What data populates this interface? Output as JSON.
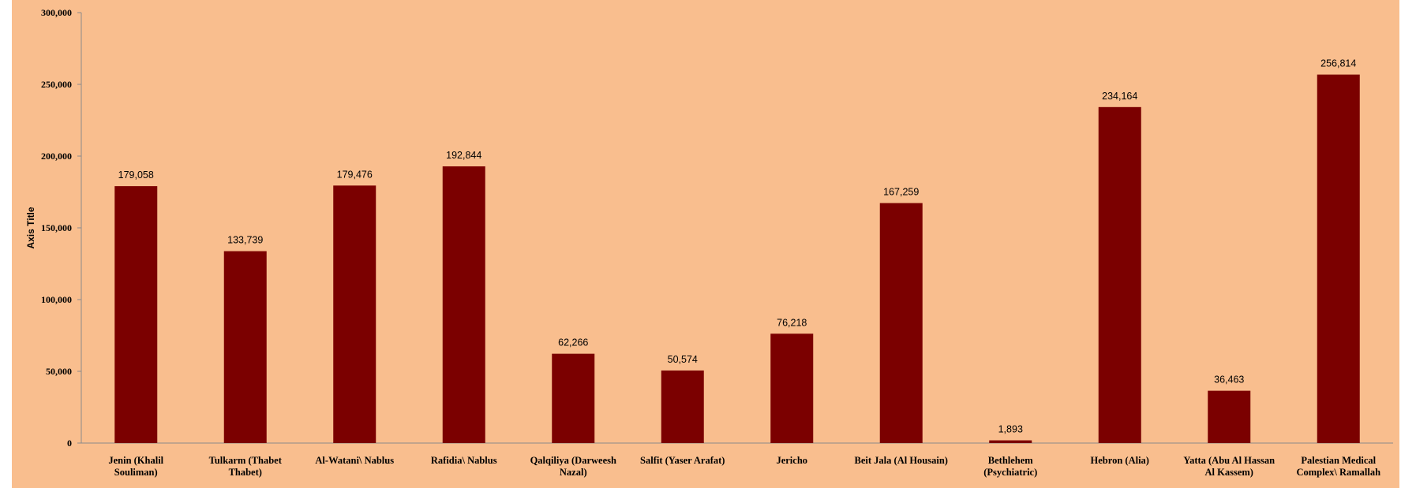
{
  "chart_data": {
    "type": "bar",
    "ylabel": "Axis Title",
    "ylim": [
      0,
      300000
    ],
    "yticks": [
      "0",
      "50,000",
      "100,000",
      "150,000",
      "200,000",
      "250,000",
      "300,000"
    ],
    "grid": false,
    "legend": "none",
    "bar_color": "#7b0000",
    "background_color": "#f9be8e",
    "categories": [
      [
        "Jenin (Khalil",
        "Souliman)"
      ],
      [
        "Tulkarm (Thabet",
        "Thabet)"
      ],
      [
        "Al-Watani\\ Nablus"
      ],
      [
        "Rafidia\\ Nablus"
      ],
      [
        "Qalqiliya (Darweesh",
        "Nazal)"
      ],
      [
        "Salfit (Yaser Arafat)"
      ],
      [
        "Jericho"
      ],
      [
        "Beit Jala (Al Housain)"
      ],
      [
        "Bethlehem",
        "(Psychiatric)"
      ],
      [
        "Hebron (Alia)"
      ],
      [
        "Yatta (Abu  Al Hassan",
        "Al Kassem)"
      ],
      [
        "Palestian Medical",
        "Complex\\ Ramallah"
      ]
    ],
    "values": [
      179058,
      133739,
      179476,
      192844,
      62266,
      50574,
      76218,
      167259,
      1893,
      234164,
      36463,
      256814
    ],
    "data_labels": [
      "179,058",
      "133,739",
      "179,476",
      "192,844",
      "62,266",
      "50,574",
      "76,218",
      "167,259",
      "1,893",
      "234,164",
      "36,463",
      "256,814"
    ]
  }
}
